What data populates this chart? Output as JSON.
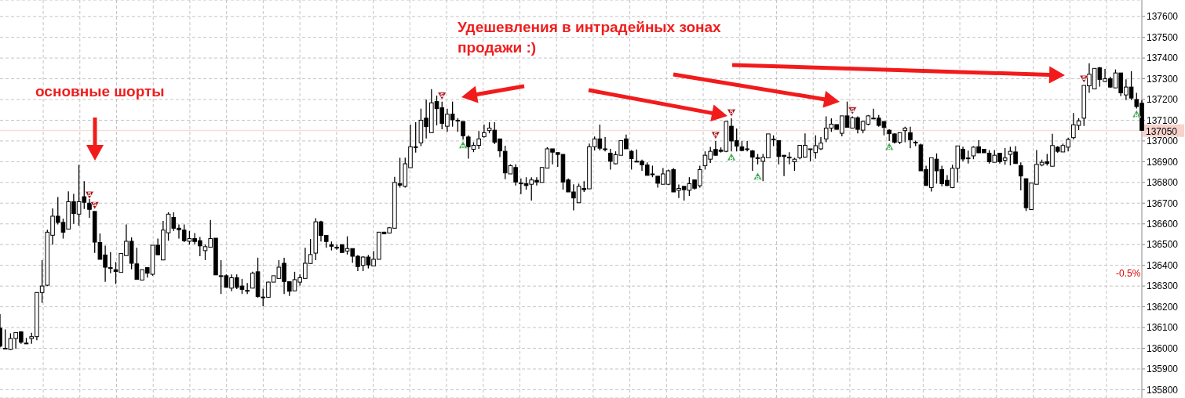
{
  "chart_data": {
    "type": "candlestick",
    "categories": [
      null,
      null,
      null,
      null,
      null,
      null,
      null,
      null,
      null,
      null,
      null,
      null,
      null,
      null,
      null,
      null,
      null,
      null,
      null,
      null,
      null,
      null,
      null,
      null,
      null,
      null,
      null,
      null,
      null,
      null,
      null,
      null,
      null,
      null,
      null,
      null,
      null,
      null,
      null,
      null,
      null,
      null,
      null,
      null,
      null,
      null,
      null,
      null,
      null,
      null,
      null,
      null,
      null,
      null,
      null,
      null,
      null,
      null,
      null,
      null,
      null,
      null,
      null,
      null,
      null,
      null,
      null,
      null,
      null,
      null,
      null,
      null,
      null,
      null,
      null,
      null,
      null,
      null,
      null,
      null,
      null,
      null,
      null,
      null,
      null,
      null,
      null,
      null,
      null,
      null,
      null,
      null,
      null,
      null,
      null,
      null,
      null,
      null,
      null,
      null,
      null,
      null,
      null,
      null,
      null,
      null,
      null,
      null,
      null,
      null,
      null,
      null,
      null,
      null,
      null,
      null,
      null,
      null,
      null,
      null,
      null,
      null,
      null,
      null,
      null,
      null,
      null,
      null,
      null,
      null,
      null,
      null,
      null,
      null,
      null,
      null,
      null,
      null,
      null,
      null,
      null,
      null,
      null,
      null,
      null,
      null,
      null,
      null,
      null,
      null,
      null,
      null,
      null,
      null,
      null,
      null,
      null,
      null,
      null,
      null,
      null,
      null,
      null,
      null,
      null,
      null,
      null,
      null,
      null,
      null,
      null,
      null,
      null,
      null,
      null,
      null,
      null,
      null,
      null,
      null,
      null,
      null,
      null,
      null,
      null,
      null,
      null,
      null,
      null,
      null,
      null,
      null,
      null,
      null,
      null,
      null,
      null,
      null,
      null,
      null,
      null,
      null,
      null,
      null,
      null,
      null,
      null,
      null,
      null,
      null,
      null,
      null,
      null,
      null,
      null,
      null,
      null,
      null
    ],
    "ohlc": [
      [
        136097,
        136164,
        136004,
        136010
      ],
      [
        135998,
        136091,
        135994,
        136000
      ],
      [
        135994,
        136072,
        135991,
        136047
      ],
      [
        136047,
        136076,
        135998,
        136076
      ],
      [
        136079,
        136082,
        136022,
        136029
      ],
      [
        136025,
        136050,
        136022,
        136025
      ],
      [
        136047,
        136075,
        136022,
        136056
      ],
      [
        136056,
        136269,
        136039,
        136269
      ],
      [
        136269,
        136425,
        136219,
        136300
      ],
      [
        136304,
        136572,
        136300,
        136560
      ],
      [
        136545,
        136675,
        136500,
        136637
      ],
      [
        136637,
        136729,
        136597,
        136607
      ],
      [
        136607,
        136625,
        136529,
        136560
      ],
      [
        136575,
        136757,
        136575,
        136707
      ],
      [
        136707,
        136745,
        136600,
        136650
      ],
      [
        136647,
        136885,
        136591,
        136707
      ],
      [
        136731,
        136806,
        136672,
        136704
      ],
      [
        136700,
        136720,
        136629,
        136670
      ],
      [
        136660,
        136660,
        136460,
        136512
      ],
      [
        136510,
        136554,
        136429,
        136429
      ],
      [
        136450,
        136495,
        136320,
        136391
      ],
      [
        136389,
        136464,
        136362,
        136389
      ],
      [
        136379,
        136416,
        136310,
        136370
      ],
      [
        136366,
        136457,
        136366,
        136457
      ],
      [
        136447,
        136597,
        136447,
        136516
      ],
      [
        136516,
        136535,
        136381,
        136410
      ],
      [
        136407,
        136485,
        136332,
        136332
      ],
      [
        136329,
        136379,
        136329,
        136379
      ],
      [
        136389,
        136389,
        136341,
        136362
      ],
      [
        136357,
        136497,
        136350,
        136497
      ],
      [
        136497,
        136529,
        136450,
        136451
      ],
      [
        136426,
        136614,
        136426,
        136570
      ],
      [
        136557,
        136656,
        136519,
        136647
      ],
      [
        136631,
        136656,
        136566,
        136579
      ],
      [
        136579,
        136597,
        136529,
        136572
      ],
      [
        136570,
        136597,
        136512,
        136519
      ],
      [
        136516,
        136566,
        136500,
        136529
      ],
      [
        136529,
        136556,
        136502,
        136515
      ],
      [
        136519,
        136537,
        136444,
        136494
      ],
      [
        136471,
        136500,
        136425,
        136490
      ],
      [
        136487,
        136619,
        136487,
        136529
      ],
      [
        136531,
        136531,
        136354,
        136354
      ],
      [
        136350,
        136425,
        136262,
        136350
      ],
      [
        136350,
        136356,
        136294,
        136294
      ],
      [
        136290,
        136356,
        136275,
        136340
      ],
      [
        136340,
        136356,
        136285,
        136294
      ],
      [
        136300,
        136335,
        136262,
        136284
      ],
      [
        136279,
        136315,
        136262,
        136279
      ],
      [
        136290,
        136369,
        136290,
        136362
      ],
      [
        136369,
        136437,
        136244,
        136250
      ],
      [
        136247,
        136287,
        136202,
        136247
      ],
      [
        136246,
        136321,
        136246,
        136319
      ],
      [
        136319,
        136350,
        136319,
        136350
      ],
      [
        136337,
        136425,
        136335,
        136391
      ],
      [
        136410,
        136437,
        136262,
        136322
      ],
      [
        136321,
        136321,
        136252,
        136275
      ],
      [
        136277,
        136369,
        136277,
        136331
      ],
      [
        136319,
        136356,
        136302,
        136340
      ],
      [
        136337,
        136485,
        136337,
        136410
      ],
      [
        136409,
        136527,
        136409,
        136452
      ],
      [
        136459,
        136627,
        136425,
        136610
      ],
      [
        136610,
        136615,
        136515,
        136544
      ],
      [
        136544,
        136546,
        136485,
        136515
      ],
      [
        136500,
        136515,
        136472,
        136492
      ],
      [
        136487,
        136500,
        136475,
        136487
      ],
      [
        136500,
        136500,
        136462,
        136462
      ],
      [
        136469,
        136540,
        136452,
        136481
      ],
      [
        136481,
        136481,
        136412,
        136444
      ],
      [
        136444,
        136450,
        136372,
        136394
      ],
      [
        136400,
        136444,
        136372,
        136440
      ],
      [
        136440,
        136450,
        136385,
        136402
      ],
      [
        136397,
        136469,
        136397,
        136429
      ],
      [
        136429,
        136560,
        136429,
        136560
      ],
      [
        136560,
        136562,
        136552,
        136552
      ],
      [
        136556,
        136585,
        136556,
        136581
      ],
      [
        136579,
        136827,
        136579,
        136800
      ],
      [
        136794,
        136919,
        136775,
        136787
      ],
      [
        136781,
        136919,
        136775,
        136890
      ],
      [
        136871,
        137079,
        136871,
        136972
      ],
      [
        136972,
        137090,
        136944,
        136972
      ],
      [
        136991,
        137156,
        136975,
        137100
      ],
      [
        137110,
        137200,
        137012,
        137069
      ],
      [
        137040,
        137250,
        137040,
        137184
      ],
      [
        137190,
        137219,
        137075,
        137156
      ],
      [
        137160,
        137190,
        137056,
        137085
      ],
      [
        137071,
        137156,
        137044,
        137129
      ],
      [
        137129,
        137190,
        137069,
        137102
      ],
      [
        137100,
        137110,
        137044,
        137100
      ],
      [
        137094,
        137094,
        137006,
        137025
      ],
      [
        137019,
        137027,
        136915,
        136972
      ],
      [
        136960,
        136994,
        136946,
        136979
      ],
      [
        136979,
        137048,
        136962,
        137010
      ],
      [
        137021,
        137079,
        137016,
        137040
      ],
      [
        137050,
        137090,
        137037,
        137062
      ],
      [
        137052,
        137090,
        136985,
        136994
      ],
      [
        137010,
        137010,
        136922,
        136952
      ],
      [
        136950,
        136977,
        136815,
        136846
      ],
      [
        136841,
        136887,
        136841,
        136881
      ],
      [
        136872,
        136887,
        136785,
        136802
      ],
      [
        136797,
        136819,
        136744,
        136797
      ],
      [
        136794,
        136825,
        136765,
        136785
      ],
      [
        136791,
        136825,
        136712,
        136812
      ],
      [
        136810,
        136825,
        136785,
        136802
      ],
      [
        136800,
        136875,
        136800,
        136872
      ],
      [
        136869,
        136969,
        136869,
        136962
      ],
      [
        136962,
        136962,
        136887,
        136946
      ],
      [
        136944,
        136944,
        136875,
        136935
      ],
      [
        136935,
        136937,
        136765,
        136802
      ],
      [
        136812,
        136819,
        136754,
        136754
      ],
      [
        136754,
        136791,
        136665,
        136725
      ],
      [
        136702,
        136794,
        136702,
        136781
      ],
      [
        136771,
        136806,
        136754,
        136765
      ],
      [
        136769,
        136987,
        136769,
        136972
      ],
      [
        136972,
        137021,
        136954,
        137010
      ],
      [
        137010,
        137079,
        136954,
        136965
      ],
      [
        136962,
        137019,
        136950,
        136962
      ],
      [
        136941,
        136962,
        136862,
        136902
      ],
      [
        136890,
        136950,
        136887,
        136934
      ],
      [
        136931,
        137002,
        136931,
        137002
      ],
      [
        137010,
        137031,
        136962,
        136962
      ],
      [
        136950,
        136956,
        136862,
        136915
      ],
      [
        136902,
        136959,
        136900,
        136902
      ],
      [
        136902,
        136910,
        136856,
        136885
      ],
      [
        136884,
        136897,
        136834,
        136834
      ],
      [
        136841,
        136881,
        136825,
        136841
      ],
      [
        136830,
        136830,
        136775,
        136796
      ],
      [
        136791,
        136869,
        136791,
        136841
      ],
      [
        136791,
        136862,
        136787,
        136856
      ],
      [
        136862,
        136869,
        136754,
        136754
      ],
      [
        136762,
        136790,
        136725,
        136771
      ],
      [
        136781,
        136781,
        136712,
        136765
      ],
      [
        136762,
        136825,
        136735,
        136794
      ],
      [
        136812,
        136812,
        136765,
        136772
      ],
      [
        136784,
        136881,
        136775,
        136862
      ],
      [
        136881,
        136950,
        136862,
        136931
      ],
      [
        136912,
        136971,
        136894,
        136950
      ],
      [
        136959,
        137000,
        136929,
        136931
      ],
      [
        136956,
        136969,
        136944,
        136950
      ],
      [
        136950,
        137094,
        136946,
        137094
      ],
      [
        137071,
        137109,
        136950,
        137000
      ],
      [
        137002,
        137060,
        136950,
        136975
      ],
      [
        136972,
        137000,
        136950,
        136954
      ],
      [
        136962,
        137000,
        136950,
        136962
      ],
      [
        136952,
        136956,
        136856,
        136922
      ],
      [
        136919,
        136937,
        136887,
        136919
      ],
      [
        136902,
        136937,
        136806,
        136921
      ],
      [
        136919,
        137034,
        136919,
        137034
      ],
      [
        137009,
        137027,
        136975,
        137009
      ],
      [
        137002,
        137002,
        136887,
        136925
      ],
      [
        136931,
        136931,
        136831,
        136925
      ],
      [
        136922,
        136946,
        136887,
        136922
      ],
      [
        136900,
        136919,
        136856,
        136912
      ],
      [
        136919,
        136979,
        136912,
        136979
      ],
      [
        136922,
        137037,
        136919,
        136979
      ],
      [
        136962,
        136962,
        136902,
        136962
      ],
      [
        136944,
        137027,
        136915,
        136977
      ],
      [
        136962,
        137019,
        136956,
        136990
      ],
      [
        137010,
        137119,
        136994,
        137062
      ],
      [
        137062,
        137109,
        137044,
        137081
      ],
      [
        137079,
        137079,
        137056,
        137056
      ],
      [
        137037,
        137121,
        137022,
        137121
      ],
      [
        137121,
        137190,
        137066,
        137066
      ],
      [
        137062,
        137119,
        137062,
        137112
      ],
      [
        137112,
        137119,
        137037,
        137056
      ],
      [
        137052,
        137097,
        137037,
        137094
      ],
      [
        137081,
        137125,
        137075,
        137121
      ],
      [
        137110,
        137156,
        137106,
        137110
      ],
      [
        137110,
        137125,
        137069,
        137075
      ],
      [
        137094,
        137094,
        137027,
        137065
      ],
      [
        137052,
        137056,
        137000,
        137035
      ],
      [
        137034,
        137037,
        136987,
        136994
      ],
      [
        136994,
        137040,
        136985,
        137040
      ],
      [
        137050,
        137069,
        136994,
        137062
      ],
      [
        137040,
        137069,
        136965,
        137006
      ],
      [
        136994,
        137002,
        136975,
        136994
      ],
      [
        136981,
        136987,
        136856,
        136856
      ],
      [
        136862,
        136881,
        136785,
        136785
      ],
      [
        136775,
        136919,
        136756,
        136919
      ],
      [
        136912,
        136940,
        136794,
        136856
      ],
      [
        136862,
        136881,
        136781,
        136794
      ],
      [
        136810,
        136835,
        136782,
        136785
      ],
      [
        136775,
        136885,
        136772,
        136868
      ],
      [
        136868,
        136976,
        136800,
        136976
      ],
      [
        136960,
        136972,
        136901,
        136913
      ],
      [
        136918,
        136953,
        136891,
        136918
      ],
      [
        136928,
        136975,
        136912,
        136970
      ],
      [
        136972,
        137003,
        136941,
        136943
      ],
      [
        136960,
        136960,
        136943,
        136943
      ],
      [
        136941,
        136956,
        136891,
        136900
      ],
      [
        136897,
        136956,
        136897,
        136931
      ],
      [
        136941,
        136941,
        136891,
        136900
      ],
      [
        136907,
        136966,
        136885,
        136918
      ],
      [
        136935,
        136972,
        136882,
        136950
      ],
      [
        136947,
        136975,
        136891,
        136891
      ],
      [
        136881,
        136897,
        136762,
        136831
      ],
      [
        136818,
        136818,
        136662,
        136678
      ],
      [
        136669,
        136797,
        136669,
        136797
      ],
      [
        136791,
        136956,
        136791,
        136887
      ],
      [
        136884,
        136910,
        136878,
        136897
      ],
      [
        136900,
        136937,
        136882,
        136891
      ],
      [
        136878,
        137035,
        136878,
        136978
      ],
      [
        136970,
        136975,
        136943,
        136950
      ],
      [
        136947,
        136987,
        136947,
        136978
      ],
      [
        136970,
        137016,
        136950,
        137007
      ],
      [
        137016,
        137135,
        137007,
        137078
      ],
      [
        137075,
        137110,
        137053,
        137097
      ],
      [
        137110,
        137268,
        137072,
        137268
      ],
      [
        137266,
        137375,
        137232,
        137322
      ],
      [
        137251,
        137350,
        137251,
        137350
      ],
      [
        137353,
        137357,
        137262,
        137297
      ],
      [
        137287,
        137347,
        137285,
        137300
      ],
      [
        137300,
        137310,
        137256,
        137260
      ],
      [
        137256,
        137345,
        137256,
        137328
      ],
      [
        137328,
        137328,
        137216,
        137232
      ],
      [
        137222,
        137297,
        137197,
        137260
      ],
      [
        137260,
        137337,
        137197,
        137207
      ],
      [
        137200,
        137232,
        137157,
        137166
      ],
      [
        137182,
        137197,
        137051,
        137051
      ]
    ],
    "series": [
      {
        "name": "S",
        "type": "scatter",
        "marker": "triangle",
        "color": "#a5161a",
        "values": [
          null,
          null,
          null,
          null,
          null,
          null,
          null,
          null,
          null,
          null,
          null,
          null,
          null,
          null,
          null,
          null,
          null,
          136740,
          136690,
          null,
          null,
          null,
          null,
          null,
          null,
          null,
          null,
          null,
          null,
          null,
          null,
          null,
          null,
          null,
          null,
          null,
          null,
          null,
          null,
          null,
          null,
          null,
          null,
          null,
          null,
          null,
          null,
          null,
          null,
          null,
          null,
          null,
          null,
          null,
          null,
          null,
          null,
          null,
          null,
          null,
          null,
          null,
          null,
          null,
          null,
          null,
          null,
          null,
          null,
          null,
          null,
          null,
          null,
          null,
          null,
          null,
          null,
          null,
          null,
          null,
          null,
          null,
          null,
          null,
          137218,
          null,
          null,
          null,
          null,
          null,
          null,
          null,
          null,
          null,
          null,
          null,
          null,
          null,
          null,
          null,
          null,
          null,
          null,
          null,
          null,
          null,
          null,
          null,
          null,
          null,
          null,
          null,
          null,
          null,
          null,
          null,
          null,
          null,
          null,
          null,
          null,
          null,
          null,
          null,
          null,
          null,
          null,
          null,
          null,
          null,
          null,
          null,
          null,
          null,
          null,
          null,
          137028,
          null,
          null,
          137137,
          null,
          null,
          null,
          null,
          null,
          null,
          null,
          null,
          null,
          null,
          null,
          null,
          null,
          null,
          null,
          null,
          null,
          null,
          null,
          null,
          null,
          null,
          137147,
          null,
          null,
          null,
          null,
          null,
          null,
          null,
          null,
          null,
          null,
          null,
          null,
          null,
          null,
          null,
          null,
          null,
          null,
          null,
          null,
          null,
          null,
          null,
          null,
          null,
          null,
          null,
          null,
          null,
          null,
          null,
          null,
          null,
          null,
          null,
          null,
          null,
          null,
          null,
          null,
          null,
          null,
          null,
          137300,
          null,
          null,
          null,
          null,
          null,
          null,
          null,
          null,
          null,
          null,
          null
        ]
      },
      {
        "name": "B",
        "type": "scatter",
        "marker": "triangle",
        "color": "#3da64b",
        "values": [
          null,
          null,
          null,
          null,
          null,
          null,
          null,
          null,
          null,
          null,
          null,
          null,
          null,
          null,
          null,
          null,
          null,
          null,
          null,
          null,
          null,
          null,
          null,
          null,
          null,
          null,
          null,
          null,
          null,
          null,
          null,
          null,
          null,
          null,
          null,
          null,
          null,
          null,
          null,
          null,
          null,
          null,
          null,
          null,
          null,
          null,
          null,
          null,
          null,
          null,
          null,
          null,
          null,
          null,
          null,
          null,
          null,
          null,
          null,
          null,
          null,
          null,
          null,
          null,
          null,
          null,
          null,
          null,
          null,
          null,
          null,
          null,
          null,
          null,
          null,
          null,
          null,
          null,
          null,
          null,
          null,
          null,
          null,
          null,
          null,
          null,
          null,
          null,
          136980,
          null,
          null,
          null,
          null,
          null,
          null,
          null,
          null,
          null,
          null,
          null,
          null,
          null,
          null,
          null,
          null,
          null,
          null,
          null,
          null,
          null,
          null,
          null,
          null,
          null,
          null,
          null,
          null,
          null,
          null,
          null,
          null,
          null,
          null,
          null,
          null,
          null,
          null,
          null,
          null,
          null,
          null,
          null,
          null,
          null,
          null,
          null,
          null,
          null,
          null,
          136922,
          null,
          null,
          null,
          null,
          136829,
          null,
          null,
          null,
          null,
          null,
          null,
          null,
          null,
          null,
          null,
          null,
          null,
          null,
          null,
          null,
          null,
          null,
          null,
          null,
          null,
          null,
          null,
          null,
          null,
          136972,
          null,
          null,
          null,
          null,
          null,
          null,
          null,
          null,
          null,
          null,
          null,
          null,
          null,
          null,
          null,
          null,
          null,
          null,
          null,
          null,
          null,
          null,
          null,
          null,
          null,
          null,
          null,
          null,
          null,
          null,
          null,
          null,
          null,
          null,
          null,
          null,
          null,
          null,
          null,
          null,
          null,
          null,
          null,
          null,
          null,
          null,
          137130,
          null
        ]
      }
    ],
    "ylim": [
      135760,
      137680
    ],
    "yticks": [
      135800,
      135900,
      136000,
      136100,
      136200,
      136300,
      136400,
      136500,
      136600,
      136700,
      136800,
      136900,
      137000,
      137100,
      137200,
      137300,
      137400,
      137500,
      137600
    ],
    "ref_lines": [
      {
        "axis": "y",
        "value": 137050,
        "label": "137050",
        "color": "#f6d3cc"
      }
    ],
    "annotations": [
      "основные шорты",
      "Удешевления в интрадейных зонах\nпродажи :)",
      "-0.5%"
    ],
    "grid": true
  }
}
